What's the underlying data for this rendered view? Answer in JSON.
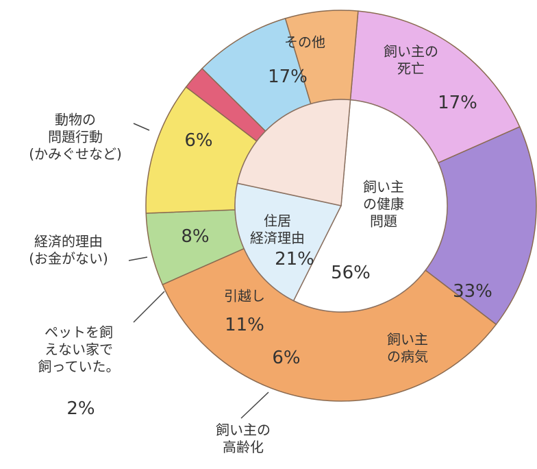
{
  "chart_data": [
    {
      "type": "donut",
      "categories": [
        "その他",
        "飼い主の\n死亡",
        "飼い主\nの病気",
        "飼い主の\n高齢化",
        "引越し",
        "ペットを飼\nえない家で\n飼っていた。",
        "経済的理由\n(お金がない)",
        "動物の\n問題行動\n(かみぐせなど)"
      ],
      "values": [
        17,
        17,
        33,
        6,
        11,
        2,
        8,
        6
      ],
      "value_labels": [
        "17%",
        "17%",
        "33%",
        "6%",
        "11%",
        "2%",
        "8%",
        "6%"
      ],
      "colors": [
        "#e9b3ea",
        "#a58ad6",
        "#f2a86a",
        "#b5dc98",
        "#f6e46c",
        "#e2607a",
        "#a9d9f2",
        "#f4b77c"
      ]
    },
    {
      "type": "pie",
      "categories": [
        "飼い主\nの健康\n問題",
        "住居\n経済理由",
        null
      ],
      "values": [
        56,
        21,
        23
      ],
      "value_labels": [
        "56%",
        "21%",
        null
      ],
      "colors": [
        "#ffffff",
        "#dfeff9",
        "#f8e4dc"
      ]
    }
  ]
}
